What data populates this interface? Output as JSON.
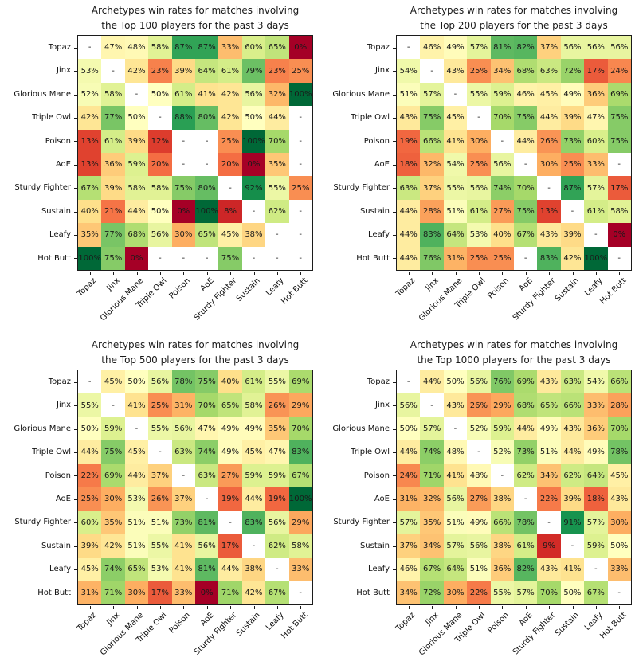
{
  "page": {
    "background_color": "#ffffff",
    "description_labels": {
      "missing_value_label": "-"
    }
  },
  "style": {
    "colormap": "RdYlGn",
    "colormap_stops": [
      "#a50026",
      "#d73027",
      "#f46d43",
      "#fdae61",
      "#fee08b",
      "#ffffbf",
      "#d9ef8b",
      "#a6d96a",
      "#66bd63",
      "#1a9850",
      "#006837"
    ],
    "missing_cell_color": "#ffffff",
    "annotation_text_color": "#1a1a1a",
    "axis_text_color": "#111111",
    "spine_color": "#1c1c1c"
  },
  "archetypes": [
    "Topaz",
    "Jinx",
    "Glorious Mane",
    "Triple Owl",
    "Poison",
    "AoE",
    "Sturdy Fighter",
    "Sustain",
    "Leafy",
    "Hot Butt"
  ],
  "chart_data": [
    {
      "type": "heatmap",
      "title_lines": [
        "Archetypes win rates for matches involving",
        "the Top 100 players for the past 3 days"
      ],
      "categories": [
        "Topaz",
        "Jinx",
        "Glorious Mane",
        "Triple Owl",
        "Poison",
        "AoE",
        "Sturdy Fighter",
        "Sustain",
        "Leafy",
        "Hot Butt"
      ],
      "value_unit": "%",
      "value_range": [
        0,
        100
      ],
      "missing": null,
      "values_pct": [
        [
          null,
          47,
          48,
          58,
          87,
          87,
          33,
          60,
          65,
          0
        ],
        [
          53,
          null,
          42,
          23,
          39,
          64,
          61,
          79,
          23,
          25
        ],
        [
          52,
          58,
          null,
          50,
          61,
          41,
          42,
          56,
          32,
          100
        ],
        [
          42,
          77,
          50,
          null,
          88,
          80,
          42,
          50,
          44,
          null
        ],
        [
          13,
          61,
          39,
          12,
          null,
          null,
          25,
          100,
          70,
          null
        ],
        [
          13,
          36,
          59,
          20,
          null,
          null,
          20,
          0,
          35,
          null
        ],
        [
          67,
          39,
          58,
          58,
          75,
          80,
          null,
          92,
          55,
          25
        ],
        [
          40,
          21,
          44,
          50,
          0,
          100,
          8,
          null,
          62,
          null
        ],
        [
          35,
          77,
          68,
          56,
          30,
          65,
          45,
          38,
          null,
          null
        ],
        [
          100,
          75,
          0,
          null,
          null,
          null,
          75,
          null,
          null,
          null
        ]
      ]
    },
    {
      "type": "heatmap",
      "title_lines": [
        "Archetypes win rates for matches involving",
        "the Top 200 players for the past 3 days"
      ],
      "categories": [
        "Topaz",
        "Jinx",
        "Glorious Mane",
        "Triple Owl",
        "Poison",
        "AoE",
        "Sturdy Fighter",
        "Sustain",
        "Leafy",
        "Hot Butt"
      ],
      "value_unit": "%",
      "value_range": [
        0,
        100
      ],
      "missing": null,
      "values_pct": [
        [
          null,
          46,
          49,
          57,
          81,
          82,
          37,
          56,
          56,
          56
        ],
        [
          54,
          null,
          43,
          25,
          34,
          68,
          63,
          72,
          17,
          24
        ],
        [
          51,
          57,
          null,
          55,
          59,
          46,
          45,
          49,
          36,
          69
        ],
        [
          43,
          75,
          45,
          null,
          70,
          75,
          44,
          39,
          47,
          75
        ],
        [
          19,
          66,
          41,
          30,
          null,
          44,
          26,
          73,
          60,
          75
        ],
        [
          18,
          32,
          54,
          25,
          56,
          null,
          30,
          25,
          33,
          null
        ],
        [
          63,
          37,
          55,
          56,
          74,
          70,
          null,
          87,
          57,
          17
        ],
        [
          44,
          28,
          51,
          61,
          27,
          75,
          13,
          null,
          61,
          58
        ],
        [
          44,
          83,
          64,
          53,
          40,
          67,
          43,
          39,
          null,
          0
        ],
        [
          44,
          76,
          31,
          25,
          25,
          null,
          83,
          42,
          100,
          null
        ]
      ]
    },
    {
      "type": "heatmap",
      "title_lines": [
        "Archetypes win rates for matches involving",
        "the Top 500 players for the past 3 days"
      ],
      "categories": [
        "Topaz",
        "Jinx",
        "Glorious Mane",
        "Triple Owl",
        "Poison",
        "AoE",
        "Sturdy Fighter",
        "Sustain",
        "Leafy",
        "Hot Butt"
      ],
      "value_unit": "%",
      "value_range": [
        0,
        100
      ],
      "missing": null,
      "values_pct": [
        [
          null,
          45,
          50,
          56,
          78,
          75,
          40,
          61,
          55,
          69
        ],
        [
          55,
          null,
          41,
          25,
          31,
          70,
          65,
          58,
          26,
          29
        ],
        [
          50,
          59,
          null,
          55,
          56,
          47,
          49,
          49,
          35,
          70
        ],
        [
          44,
          75,
          45,
          null,
          63,
          74,
          49,
          45,
          47,
          83
        ],
        [
          22,
          69,
          44,
          37,
          null,
          63,
          27,
          59,
          59,
          67
        ],
        [
          25,
          30,
          53,
          26,
          37,
          null,
          19,
          44,
          19,
          100
        ],
        [
          60,
          35,
          51,
          51,
          73,
          81,
          null,
          83,
          56,
          29
        ],
        [
          39,
          42,
          51,
          55,
          41,
          56,
          17,
          null,
          62,
          58
        ],
        [
          45,
          74,
          65,
          53,
          41,
          81,
          44,
          38,
          null,
          33
        ],
        [
          31,
          71,
          30,
          17,
          33,
          0,
          71,
          42,
          67,
          null
        ]
      ]
    },
    {
      "type": "heatmap",
      "title_lines": [
        "Archetypes win rates for matches involving",
        "the Top 1000 players for the past 3 days"
      ],
      "categories": [
        "Topaz",
        "Jinx",
        "Glorious Mane",
        "Triple Owl",
        "Poison",
        "AoE",
        "Sturdy Fighter",
        "Sustain",
        "Leafy",
        "Hot Butt"
      ],
      "value_unit": "%",
      "value_range": [
        0,
        100
      ],
      "missing": null,
      "values_pct": [
        [
          null,
          44,
          50,
          56,
          76,
          69,
          43,
          63,
          54,
          66
        ],
        [
          56,
          null,
          43,
          26,
          29,
          68,
          65,
          66,
          33,
          28
        ],
        [
          50,
          57,
          null,
          52,
          59,
          44,
          49,
          43,
          36,
          70
        ],
        [
          44,
          74,
          48,
          null,
          52,
          73,
          51,
          44,
          49,
          78
        ],
        [
          24,
          71,
          41,
          48,
          null,
          62,
          34,
          62,
          64,
          45
        ],
        [
          31,
          32,
          56,
          27,
          38,
          null,
          22,
          39,
          18,
          43
        ],
        [
          57,
          35,
          51,
          49,
          66,
          78,
          null,
          91,
          57,
          30
        ],
        [
          37,
          34,
          57,
          56,
          38,
          61,
          9,
          null,
          59,
          50
        ],
        [
          46,
          67,
          64,
          51,
          36,
          82,
          43,
          41,
          null,
          33
        ],
        [
          34,
          72,
          30,
          22,
          55,
          57,
          70,
          50,
          67,
          null
        ]
      ]
    }
  ]
}
